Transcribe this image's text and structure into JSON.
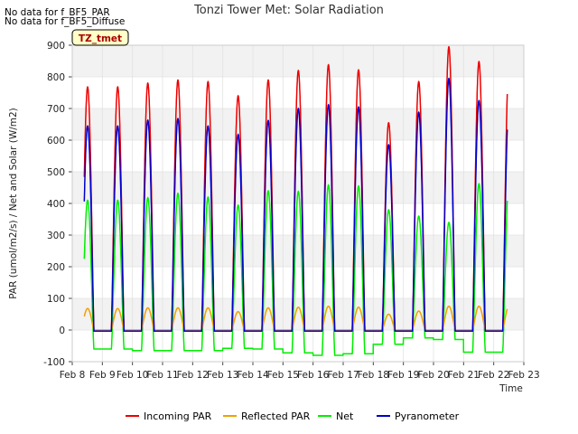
{
  "notes": [
    "No data for f_BF5_PAR",
    "No data for f_BF5_Diffuse"
  ],
  "site_badge": "TZ_tmet",
  "colors": {
    "incoming_par": "#ee0000",
    "reflected_par": "#f0a000",
    "net": "#00ee00",
    "pyranometer": "#0000cc",
    "band": "#f2f2f2",
    "badge_bg": "#ffffc8",
    "badge_border": "#000000",
    "badge_text": "#aa0000"
  },
  "chart_data": {
    "type": "line",
    "title": "Tonzi Tower Met: Solar Radiation",
    "xlabel": "Time",
    "ylabel": "PAR (umol/m2/s) / Net and Solar (W/m2)",
    "xlim": [
      8,
      23
    ],
    "ylim": [
      -100,
      900
    ],
    "yticks": [
      -100,
      0,
      100,
      200,
      300,
      400,
      500,
      600,
      700,
      800,
      900
    ],
    "xticks": [
      {
        "day": 8,
        "label": "Feb 8"
      },
      {
        "day": 9,
        "label": "Feb 9"
      },
      {
        "day": 10,
        "label": "Feb 10"
      },
      {
        "day": 11,
        "label": "Feb 11"
      },
      {
        "day": 12,
        "label": "Feb 12"
      },
      {
        "day": 13,
        "label": "Feb 13"
      },
      {
        "day": 14,
        "label": "Feb 14"
      },
      {
        "day": 15,
        "label": "Feb 15"
      },
      {
        "day": 16,
        "label": "Feb 16"
      },
      {
        "day": 17,
        "label": "Feb 17"
      },
      {
        "day": 18,
        "label": "Feb 18"
      },
      {
        "day": 19,
        "label": "Feb 19"
      },
      {
        "day": 20,
        "label": "Feb 20"
      },
      {
        "day": 21,
        "label": "Feb 21"
      },
      {
        "day": 22,
        "label": "Feb 22"
      },
      {
        "day": 23,
        "label": "Feb 23"
      }
    ],
    "grid": true,
    "legend_position": "bottom",
    "series_start_day": 8.4,
    "series_end_day": 22.45,
    "daily_peaks": [
      {
        "day": 9,
        "incoming_par": 768,
        "reflected_par": 68,
        "net": 410,
        "pyranometer": 645,
        "night_net": -60
      },
      {
        "day": 10,
        "incoming_par": 780,
        "reflected_par": 70,
        "net": 418,
        "pyranometer": 663,
        "night_net": -65
      },
      {
        "day": 11,
        "incoming_par": 790,
        "reflected_par": 70,
        "net": 432,
        "pyranometer": 668,
        "night_net": -65
      },
      {
        "day": 12,
        "incoming_par": 785,
        "reflected_par": 70,
        "net": 420,
        "pyranometer": 645,
        "night_net": -65
      },
      {
        "day": 13,
        "incoming_par": 740,
        "reflected_par": 58,
        "net": 395,
        "pyranometer": 618,
        "night_net": -58
      },
      {
        "day": 14,
        "incoming_par": 790,
        "reflected_par": 70,
        "net": 440,
        "pyranometer": 662,
        "night_net": -60
      },
      {
        "day": 15,
        "incoming_par": 820,
        "reflected_par": 72,
        "net": 438,
        "pyranometer": 700,
        "night_net": -72
      },
      {
        "day": 16,
        "incoming_par": 838,
        "reflected_par": 75,
        "net": 458,
        "pyranometer": 712,
        "night_net": -80
      },
      {
        "day": 17,
        "incoming_par": 822,
        "reflected_par": 72,
        "net": 455,
        "pyranometer": 705,
        "night_net": -75
      },
      {
        "day": 18,
        "incoming_par": 655,
        "reflected_par": 50,
        "net": 380,
        "pyranometer": 585,
        "night_net": -45
      },
      {
        "day": 19,
        "incoming_par": 785,
        "reflected_par": 60,
        "net": 360,
        "pyranometer": 688,
        "night_net": -25
      },
      {
        "day": 20,
        "incoming_par": 895,
        "reflected_par": 75,
        "net": 340,
        "pyranometer": 795,
        "night_net": -30
      },
      {
        "day": 21,
        "incoming_par": 848,
        "reflected_par": 75,
        "net": 462,
        "pyranometer": 725,
        "night_net": -70
      },
      {
        "day": 22,
        "incoming_par": 845,
        "reflected_par": 75,
        "net": 478,
        "pyranometer": 718,
        "night_net": -70
      }
    ],
    "series": [
      {
        "key": "incoming_par",
        "name": "Incoming PAR"
      },
      {
        "key": "reflected_par",
        "name": "Reflected PAR"
      },
      {
        "key": "net",
        "name": "Net"
      },
      {
        "key": "pyranometer",
        "name": "Pyranometer"
      }
    ]
  }
}
